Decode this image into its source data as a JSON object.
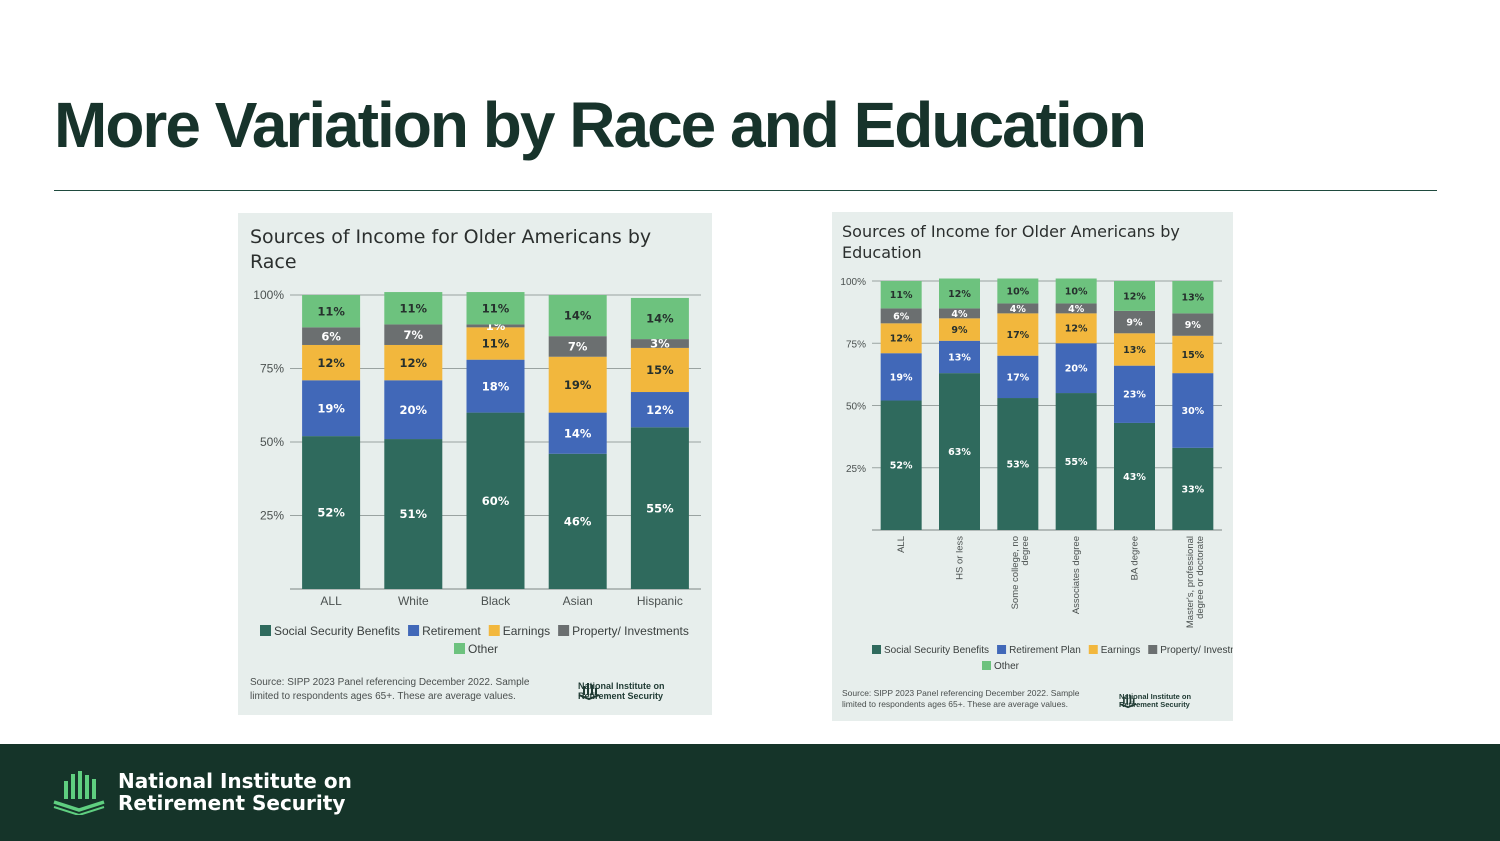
{
  "slide": {
    "title": "More Variation by Race and Education"
  },
  "colors": {
    "social_security": "#2f6a5d",
    "retirement": "#4168b8",
    "earnings": "#f2b73d",
    "property": "#6b6f70",
    "other": "#6dc27e",
    "footer_bg": "#153429",
    "brand_green": "#5fcf80"
  },
  "footer": {
    "org_line1": "National Institute on",
    "org_line2": "Retirement Security",
    "logo_icon": "bar-chart-logo-icon"
  },
  "chart_data": [
    {
      "type": "bar",
      "stacked": true,
      "title": "Sources of Income for Older Americans by Race",
      "categories": [
        "ALL",
        "White",
        "Black",
        "Asian",
        "Hispanic"
      ],
      "yticks": [
        "100%",
        "75%",
        "50%",
        "25%"
      ],
      "ylim": [
        0,
        100
      ],
      "series": [
        {
          "name": "Social Security Benefits",
          "values": [
            52,
            51,
            60,
            46,
            55
          ]
        },
        {
          "name": "Retirement",
          "values": [
            19,
            20,
            18,
            14,
            12
          ]
        },
        {
          "name": "Earnings",
          "values": [
            12,
            12,
            11,
            19,
            15
          ]
        },
        {
          "name": "Property/ Investments",
          "values": [
            6,
            7,
            1,
            7,
            3
          ]
        },
        {
          "name": "Other",
          "values": [
            11,
            11,
            11,
            14,
            14
          ]
        }
      ],
      "source": "Source: SIPP 2023 Panel referencing December 2022. Sample limited to respondents ages 65+. These are average values.",
      "logo_line1": "National Institute on",
      "logo_line2": "Retirement Security"
    },
    {
      "type": "bar",
      "stacked": true,
      "title": "Sources of Income for Older Americans by Education",
      "categories": [
        "ALL",
        "HS or less",
        "Some college, no degree",
        "Associates degree",
        "BA degree",
        "Master's, professional degree or doctorate"
      ],
      "yticks": [
        "100%",
        "75%",
        "50%",
        "25%"
      ],
      "ylim": [
        0,
        100
      ],
      "series": [
        {
          "name": "Social Security Benefits",
          "values": [
            52,
            63,
            53,
            55,
            43,
            33
          ]
        },
        {
          "name": "Retirement Plan",
          "values": [
            19,
            13,
            17,
            20,
            23,
            30
          ]
        },
        {
          "name": "Earnings",
          "values": [
            12,
            9,
            17,
            12,
            13,
            15
          ]
        },
        {
          "name": "Property/ Investments",
          "values": [
            6,
            4,
            4,
            4,
            9,
            9
          ]
        },
        {
          "name": "Other",
          "values": [
            11,
            12,
            10,
            10,
            12,
            13
          ]
        }
      ],
      "source": "Source: SIPP 2023 Panel referencing December 2022. Sample limited to respondents ages 65+. These are average values.",
      "logo_line1": "National Institute on",
      "logo_line2": "Retirement Security"
    }
  ]
}
